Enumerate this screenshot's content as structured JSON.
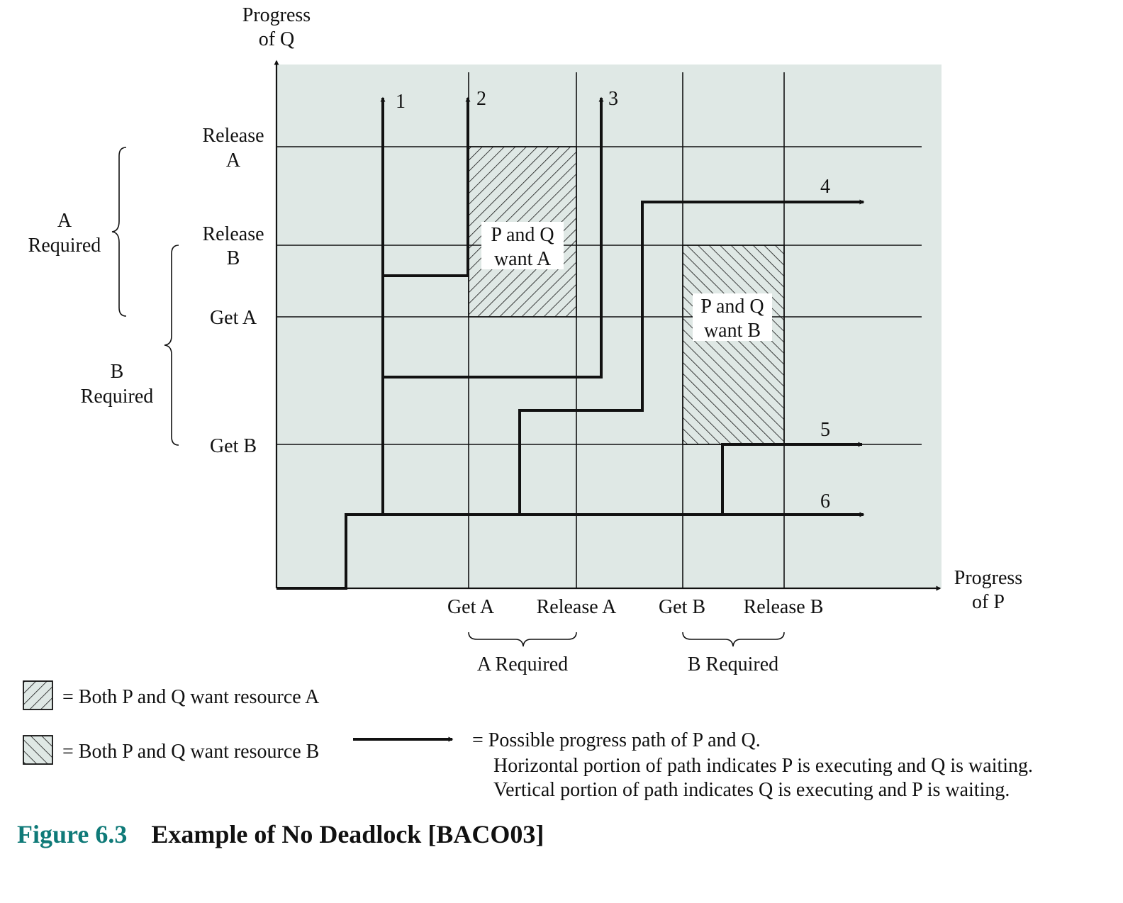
{
  "axes": {
    "y_title_line1": "Progress",
    "y_title_line2": "of Q",
    "x_title_line1": "Progress",
    "x_title_line2": "of P"
  },
  "y_ticks": {
    "release_a_line1": "Release",
    "release_a_line2": "A",
    "release_b_line1": "Release",
    "release_b_line2": "B",
    "get_a": "Get A",
    "get_b": "Get B"
  },
  "x_ticks": {
    "get_a": "Get A",
    "release_a": "Release A",
    "get_b": "Get B",
    "release_b": "Release B"
  },
  "left_braces": {
    "a_line1": "A",
    "a_line2": "Required",
    "b_line1": "B",
    "b_line2": "Required"
  },
  "bottom_braces": {
    "a": "A Required",
    "b": "B Required"
  },
  "regions": {
    "a_line1": "P and Q",
    "a_line2": "want A",
    "b_line1": "P and Q",
    "b_line2": "want B"
  },
  "path_labels": [
    "1",
    "2",
    "3",
    "4",
    "5",
    "6"
  ],
  "legend": {
    "hatch_a": "= Both P and Q want resource A",
    "hatch_b": "= Both P and Q want resource B",
    "path_line1": "= Possible progress path of P and Q.",
    "path_line2": "Horizontal portion of path indicates P is executing and Q is waiting.",
    "path_line3": "Vertical portion of path indicates Q is executing and P is waiting."
  },
  "caption": {
    "number": "Figure 6.3",
    "title": "Example of No Deadlock [BACO03]"
  },
  "colors": {
    "plot_background": "#dfe8e5",
    "caption_accent": "#0f7a78"
  }
}
